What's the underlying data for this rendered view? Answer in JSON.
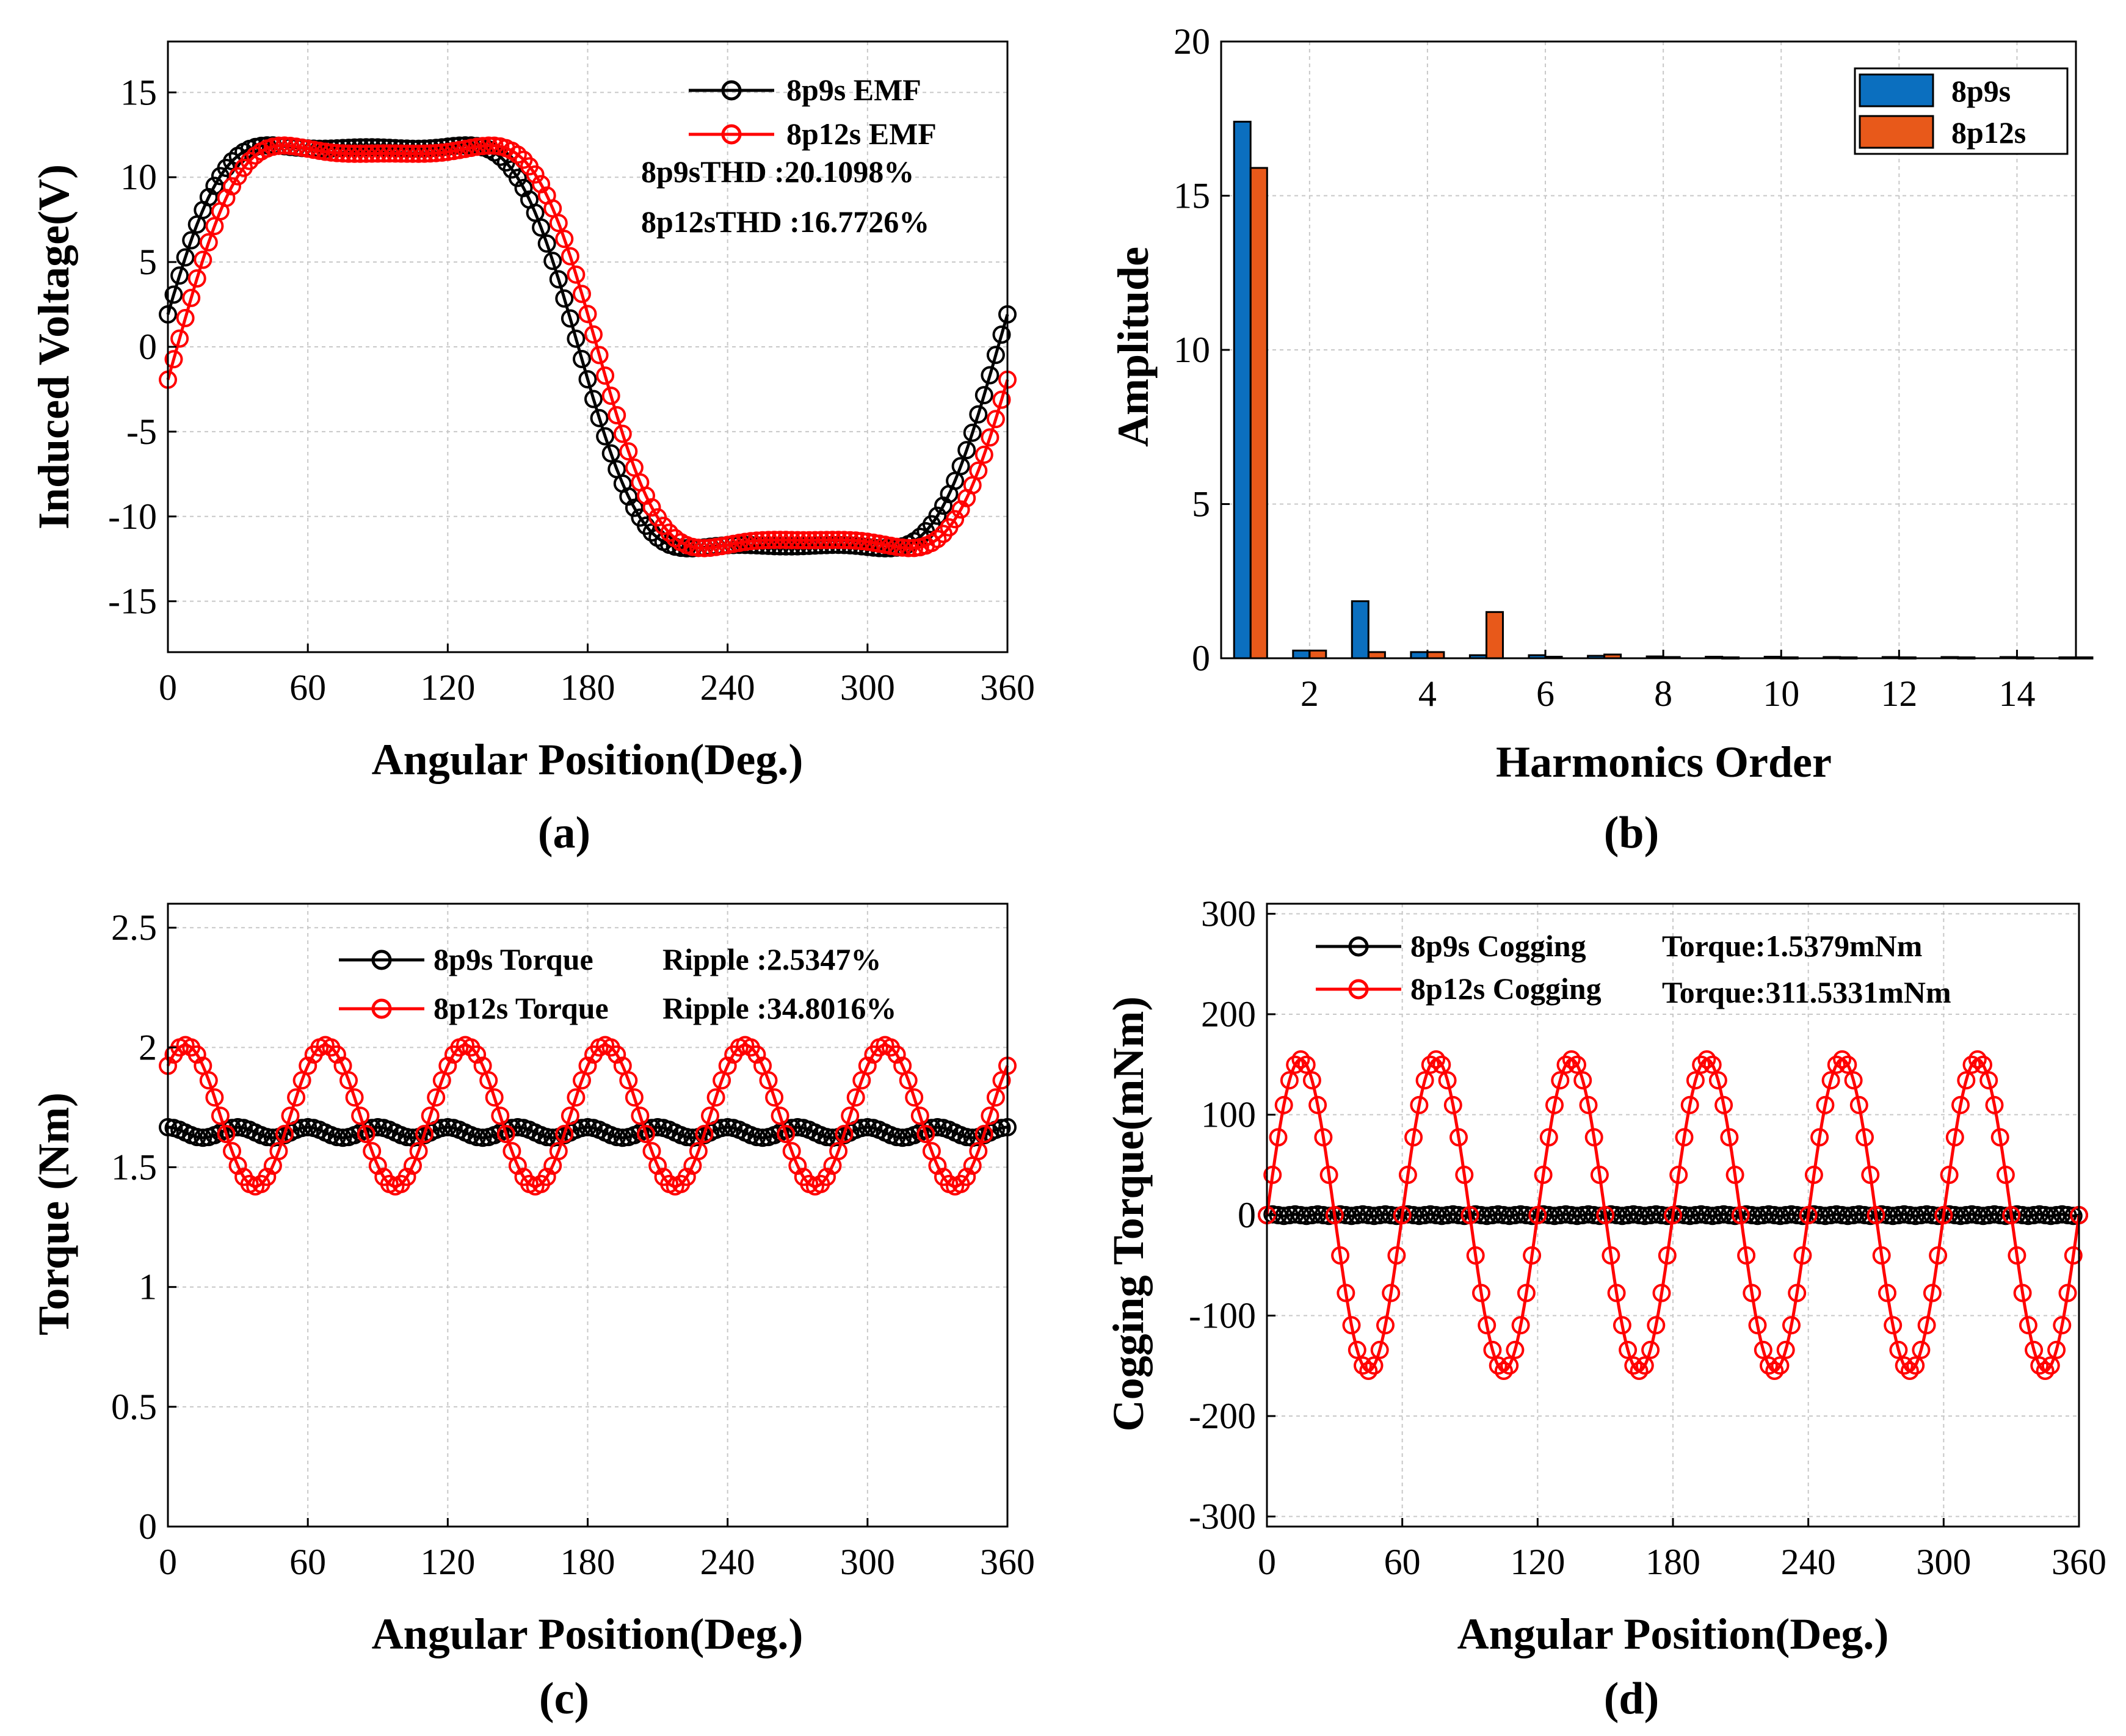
{
  "colors": {
    "black_series": "#000000",
    "red_series": "#ff0000",
    "bar_blue": "#0b6fbf",
    "bar_orange": "#e8591a"
  },
  "chart_data": [
    {
      "id": "a",
      "type": "line",
      "caption": "(a)",
      "xlabel": "Angular Position(Deg.)",
      "ylabel": "Induced Voltage(V)",
      "xlim": [
        0,
        360
      ],
      "ylim": [
        -18,
        18
      ],
      "xticks": [
        0,
        60,
        120,
        180,
        240,
        300,
        360
      ],
      "yticks": [
        -15,
        -10,
        -5,
        0,
        5,
        10,
        15
      ],
      "grid": true,
      "series": [
        {
          "name": "8p9s EMF",
          "color": "#000000",
          "model": "emf",
          "amplitude": 15.2,
          "phase_shift": -4,
          "dip": 0.15
        },
        {
          "name": "8p12s EMF",
          "color": "#ff0000",
          "model": "emf",
          "amplitude": 15.2,
          "phase_shift": 4,
          "dip": 0.55
        }
      ],
      "annotations": [
        "8p9sTHD :20.1098%",
        "8p12sTHD :16.7726%"
      ]
    },
    {
      "id": "b",
      "type": "bar",
      "caption": "(b)",
      "xlabel": "Harmonics Order",
      "ylabel": "Amplitude",
      "xlim": [
        0.5,
        15
      ],
      "ylim": [
        0,
        20
      ],
      "xticks": [
        2,
        4,
        6,
        8,
        10,
        12,
        14
      ],
      "yticks": [
        0,
        5,
        10,
        15,
        20
      ],
      "grid": true,
      "categories": [
        1,
        2,
        3,
        4,
        5,
        6,
        7,
        8,
        9,
        10,
        11,
        12,
        13,
        14,
        15
      ],
      "series": [
        {
          "name": "8p9s",
          "color": "#0b6fbf",
          "values": [
            17.4,
            0.25,
            1.85,
            0.2,
            0.1,
            0.1,
            0.08,
            0.06,
            0.05,
            0.05,
            0.04,
            0.04,
            0.04,
            0.04,
            0.03
          ]
        },
        {
          "name": "8p12s",
          "color": "#e8591a",
          "values": [
            15.9,
            0.25,
            0.2,
            0.2,
            1.5,
            0.05,
            0.12,
            0.04,
            0.03,
            0.03,
            0.03,
            0.03,
            0.03,
            0.03,
            0.03
          ]
        }
      ]
    },
    {
      "id": "c",
      "type": "line",
      "caption": "(c)",
      "xlabel": "Angular Position(Deg.)",
      "ylabel": "Torque (Nm)",
      "xlim": [
        0,
        360
      ],
      "ylim": [
        0,
        2.6
      ],
      "xticks": [
        0,
        60,
        120,
        180,
        240,
        300,
        360
      ],
      "yticks": [
        0,
        0.5,
        1,
        1.5,
        2,
        2.5
      ],
      "grid": true,
      "series": [
        {
          "name": "8p9s Torque",
          "color": "#000000",
          "model": "sine",
          "mean": 1.645,
          "amplitude": 0.022,
          "period": 30,
          "phase_deg": 90
        },
        {
          "name": "8p12s Torque",
          "color": "#ff0000",
          "model": "sine",
          "mean": 1.715,
          "amplitude": 0.295,
          "period": 60,
          "phase_deg": 45
        }
      ],
      "legend_labels": [
        "8p9s Torque",
        "8p12s Torque"
      ],
      "annotations": [
        "Ripple :2.5347%",
        "Ripple :34.8016%"
      ]
    },
    {
      "id": "d",
      "type": "line",
      "caption": "(d)",
      "xlabel": "Angular Position(Deg.)",
      "ylabel": "Cogging Torque(mNm)",
      "xlim": [
        0,
        360
      ],
      "ylim": [
        -310,
        310
      ],
      "xticks": [
        0,
        60,
        120,
        180,
        240,
        300,
        360
      ],
      "yticks": [
        -300,
        -200,
        -100,
        0,
        100,
        200,
        300
      ],
      "grid": true,
      "series": [
        {
          "name": "8p9s Cogging",
          "color": "#000000",
          "model": "sine",
          "mean": 0,
          "amplitude": 0.77,
          "period": 10,
          "phase_deg": 0
        },
        {
          "name": "8p12s Cogging",
          "color": "#ff0000",
          "model": "sine",
          "mean": 0,
          "amplitude": 155,
          "period": 60,
          "phase_deg": 0
        }
      ],
      "legend_labels": [
        "8p9s Cogging",
        "8p12s Cogging"
      ],
      "annotations": [
        "Torque:1.5379mNm",
        "Torque:311.5331mNm"
      ]
    }
  ]
}
